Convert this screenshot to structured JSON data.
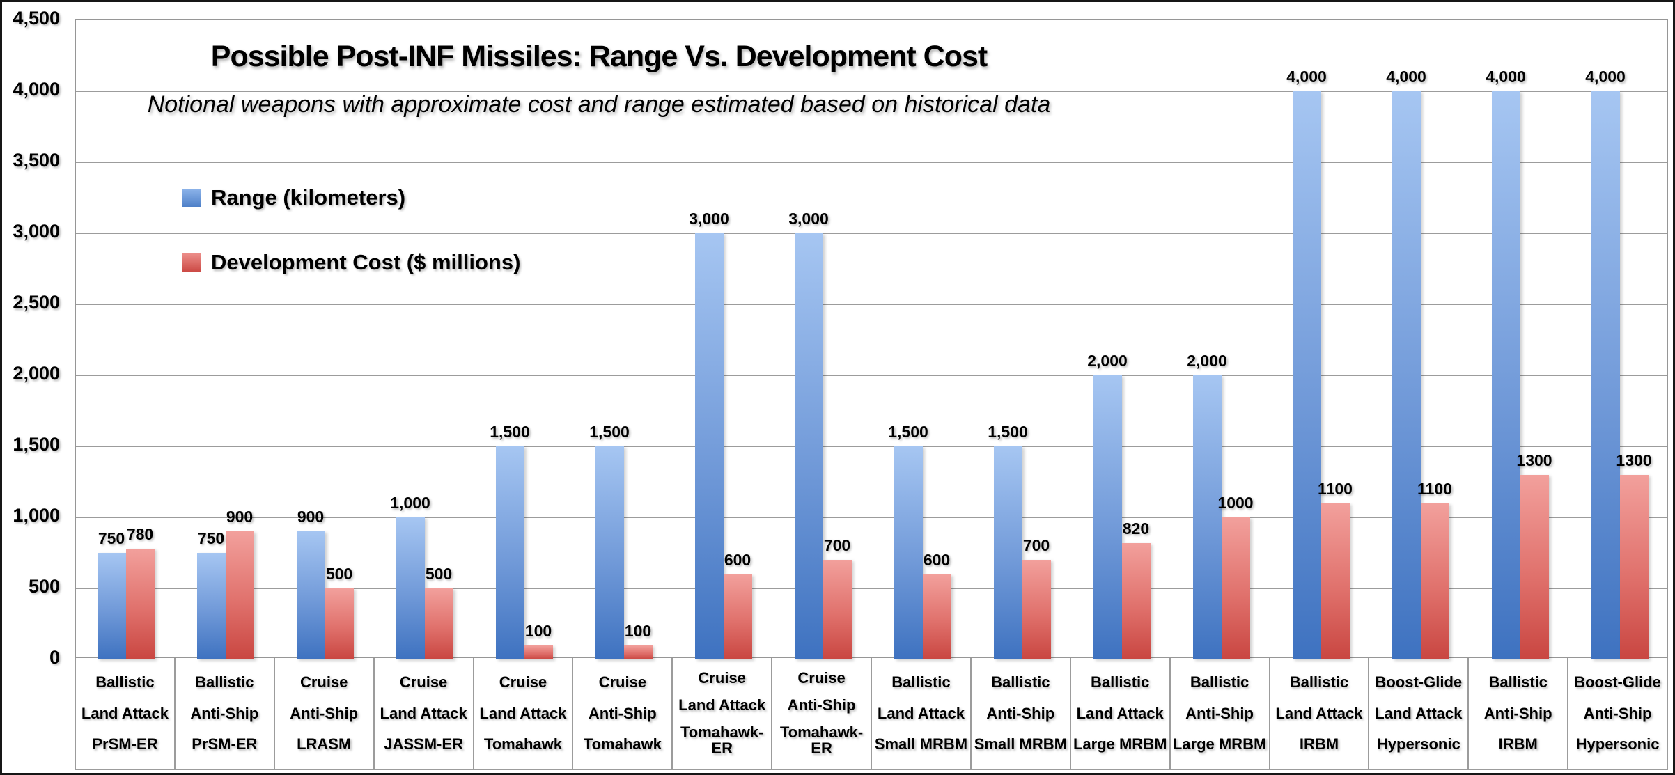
{
  "header": {
    "title": "Possible Post-INF Missiles: Range Vs. Development Cost",
    "subtitle": "Notional weapons with approximate cost and range estimated based on historical data"
  },
  "legend": {
    "items": [
      {
        "label": "Range (kilometers)",
        "swatch": "blue-gradient-square"
      },
      {
        "label": "Development Cost ($ millions)",
        "swatch": "red-gradient-square"
      }
    ]
  },
  "colors": {
    "range_bar_top": "#a6c6f2",
    "range_bar_bottom": "#3e72c0",
    "cost_bar_top": "#f2a09c",
    "cost_bar_bottom": "#c94641",
    "gridline": "#9c9c9c",
    "text": "#000000",
    "background": "#ffffff",
    "outer_border": "#161616"
  },
  "chart_data": {
    "type": "bar",
    "title": "Possible Post-INF Missiles: Range Vs. Development Cost",
    "subtitle": "Notional weapons with approximate cost and range estimated based on historical data",
    "grid": true,
    "legend_position": "inside-upper-left",
    "ylim": [
      0,
      4500
    ],
    "yticks": {
      "step": 500,
      "labels": [
        "0",
        "500",
        "1,000",
        "1,500",
        "2,000",
        "2,500",
        "3,000",
        "3,500",
        "4,000",
        "4,500"
      ]
    },
    "categories": [
      [
        "Ballistic",
        "Land Attack",
        "PrSM-ER"
      ],
      [
        "Ballistic",
        "Anti-Ship",
        "PrSM-ER"
      ],
      [
        "Cruise",
        "Anti-Ship",
        "LRASM"
      ],
      [
        "Cruise",
        "Land Attack",
        "JASSM-ER"
      ],
      [
        "Cruise",
        "Land Attack",
        "Tomahawk"
      ],
      [
        "Cruise",
        "Anti-Ship",
        "Tomahawk"
      ],
      [
        "Cruise",
        "Land Attack",
        "Tomahawk-\nER"
      ],
      [
        "Cruise",
        "Anti-Ship",
        "Tomahawk-\nER"
      ],
      [
        "Ballistic",
        "Land Attack",
        "Small MRBM"
      ],
      [
        "Ballistic",
        "Anti-Ship",
        "Small MRBM"
      ],
      [
        "Ballistic",
        "Land Attack",
        "Large MRBM"
      ],
      [
        "Ballistic",
        "Anti-Ship",
        "Large MRBM"
      ],
      [
        "Ballistic",
        "Land Attack",
        "IRBM"
      ],
      [
        "Boost-Glide",
        "Land Attack",
        "Hypersonic"
      ],
      [
        "Ballistic",
        "Anti-Ship",
        "IRBM"
      ],
      [
        "Boost-Glide",
        "Anti-Ship",
        "Hypersonic"
      ]
    ],
    "series": [
      {
        "name": "Range (kilometers)",
        "values": [
          750,
          750,
          900,
          1000,
          1500,
          1500,
          3000,
          3000,
          1500,
          1500,
          2000,
          2000,
          4000,
          4000,
          4000,
          4000
        ],
        "labels": [
          "750",
          "750",
          "900",
          "1,000",
          "1,500",
          "1,500",
          "3,000",
          "3,000",
          "1,500",
          "1,500",
          "2,000",
          "2,000",
          "4,000",
          "4,000",
          "4,000",
          "4,000"
        ]
      },
      {
        "name": "Development Cost ($ millions)",
        "values": [
          780,
          900,
          500,
          500,
          100,
          100,
          600,
          700,
          600,
          700,
          820,
          1000,
          1100,
          1100,
          1300,
          1300
        ],
        "labels": [
          "780",
          "900",
          "500",
          "500",
          "100",
          "100",
          "600",
          "700",
          "600",
          "700",
          "820",
          "1000",
          "1100",
          "1100",
          "1300",
          "1300"
        ]
      }
    ]
  }
}
